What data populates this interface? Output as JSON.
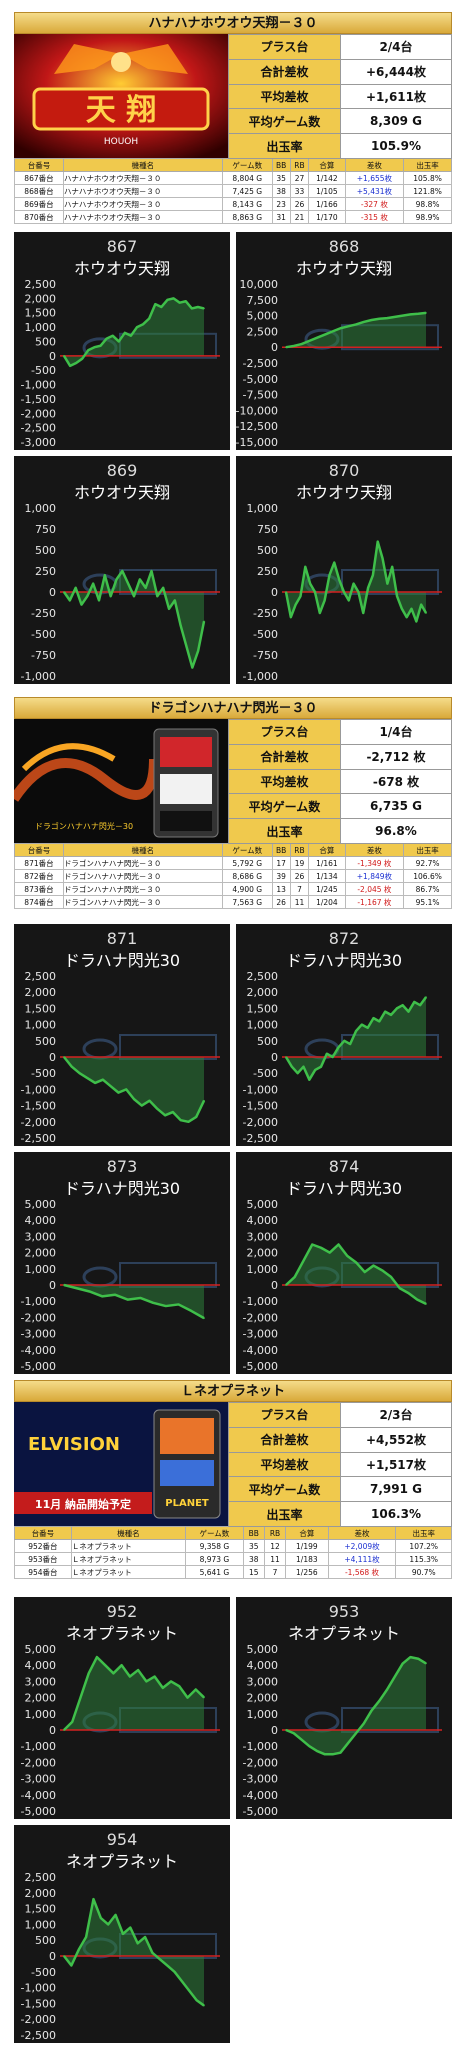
{
  "sections": [
    {
      "id": "s1",
      "title": "ハナハナホウオウ天翔－３０",
      "promo_text": "HOUOH",
      "stats": [
        {
          "k": "プラス台",
          "v": "2/4台"
        },
        {
          "k": "合計差枚",
          "v": "+6,444枚"
        },
        {
          "k": "平均差枚",
          "v": "+1,611枚"
        },
        {
          "k": "平均ゲーム数",
          "v": "8,309 G"
        },
        {
          "k": "出玉率",
          "v": "105.9%"
        }
      ],
      "headers": [
        "台番号",
        "機種名",
        "ゲーム数",
        "BB",
        "RB",
        "合算",
        "差枚",
        "出玉率"
      ],
      "rows": [
        [
          "867番台",
          "ハナハナホウオウ天翔－３０",
          "8,804 G",
          "35",
          "27",
          "1/142",
          "+1,655枚",
          "105.8%"
        ],
        [
          "868番台",
          "ハナハナホウオウ天翔－３０",
          "7,425 G",
          "38",
          "33",
          "1/105",
          "+5,431枚",
          "121.8%"
        ],
        [
          "869番台",
          "ハナハナホウオウ天翔－３０",
          "8,143 G",
          "23",
          "26",
          "1/166",
          "-327 枚",
          "98.8%"
        ],
        [
          "870番台",
          "ハナハナホウオウ天翔－３０",
          "8,863 G",
          "31",
          "21",
          "1/170",
          "-315 枚",
          "98.9%"
        ]
      ]
    },
    {
      "id": "s2",
      "title": "ドラゴンハナハナ閃光－３０",
      "promo_text": "ドラゴンハナハナ閃光－30",
      "stats": [
        {
          "k": "プラス台",
          "v": "1/4台"
        },
        {
          "k": "合計差枚",
          "v": "-2,712 枚"
        },
        {
          "k": "平均差枚",
          "v": "-678 枚"
        },
        {
          "k": "平均ゲーム数",
          "v": "6,735 G"
        },
        {
          "k": "出玉率",
          "v": "96.8%"
        }
      ],
      "headers": [
        "台番号",
        "機種名",
        "ゲーム数",
        "BB",
        "RB",
        "合算",
        "差枚",
        "出玉率"
      ],
      "rows": [
        [
          "871番台",
          "ドラゴンハナハナ閃光－３０",
          "5,792 G",
          "17",
          "19",
          "1/161",
          "-1,349 枚",
          "92.7%"
        ],
        [
          "872番台",
          "ドラゴンハナハナ閃光－３０",
          "8,686 G",
          "39",
          "26",
          "1/134",
          "+1,849枚",
          "106.6%"
        ],
        [
          "873番台",
          "ドラゴンハナハナ閃光－３０",
          "4,900 G",
          "13",
          "7",
          "1/245",
          "-2,045 枚",
          "86.7%"
        ],
        [
          "874番台",
          "ドラゴンハナハナ閃光－３０",
          "7,563 G",
          "26",
          "11",
          "1/204",
          "-1,167 枚",
          "95.1%"
        ]
      ]
    },
    {
      "id": "s3",
      "title": "Ｌネオプラネット",
      "promo_text": "ELVISION",
      "promo_sub": "11月 納品開始予定",
      "promo_brand": "PLANET",
      "stats": [
        {
          "k": "プラス台",
          "v": "2/3台"
        },
        {
          "k": "合計差枚",
          "v": "+4,552枚"
        },
        {
          "k": "平均差枚",
          "v": "+1,517枚"
        },
        {
          "k": "平均ゲーム数",
          "v": "7,991 G"
        },
        {
          "k": "出玉率",
          "v": "106.3%"
        }
      ],
      "headers": [
        "台番号",
        "機種名",
        "ゲーム数",
        "BB",
        "RB",
        "合算",
        "差枚",
        "出玉率"
      ],
      "rows": [
        [
          "952番台",
          "Ｌネオプラネット",
          "9,358 G",
          "35",
          "12",
          "1/199",
          "+2,009枚",
          "107.2%"
        ],
        [
          "953番台",
          "Ｌネオプラネット",
          "8,973 G",
          "38",
          "11",
          "1/183",
          "+4,111枚",
          "115.3%"
        ],
        [
          "954番台",
          "Ｌネオプラネット",
          "5,641 G",
          "15",
          "7",
          "1/256",
          "-1,568 枚",
          "90.7%"
        ]
      ]
    }
  ],
  "chart_data": [
    {
      "type": "line",
      "number": "867",
      "title": "ホウオウ天翔",
      "ylim": [
        -3000,
        2500
      ],
      "ticks": [
        2500,
        2000,
        1500,
        1000,
        500,
        0,
        -500,
        -1000,
        -1500,
        -2000,
        -2500,
        -3000
      ],
      "values": [
        0,
        -350,
        -250,
        -100,
        200,
        300,
        350,
        600,
        700,
        500,
        800,
        700,
        1000,
        1100,
        1300,
        1800,
        1700,
        1950,
        2000,
        1850,
        1900,
        1650,
        1700,
        1650
      ]
    },
    {
      "type": "line",
      "number": "868",
      "title": "ホウオウ天翔",
      "ylim": [
        -15000,
        10000
      ],
      "ticks": [
        10000,
        7500,
        5000,
        2500,
        0,
        -2500,
        -5000,
        -7500,
        -10000,
        -12500,
        -15000
      ],
      "values": [
        0,
        200,
        500,
        1000,
        1500,
        2000,
        2500,
        3000,
        3300,
        3600,
        4000,
        4300,
        4500,
        4600,
        4800,
        5000,
        5200,
        5300,
        5431
      ]
    },
    {
      "type": "line",
      "number": "869",
      "title": "ホウオウ天翔",
      "ylim": [
        -1000,
        1000
      ],
      "ticks": [
        1000,
        750,
        500,
        250,
        0,
        -250,
        -500,
        -750,
        -1000
      ],
      "values": [
        0,
        -100,
        50,
        -150,
        -50,
        100,
        -100,
        200,
        -50,
        150,
        250,
        100,
        -50,
        150,
        50,
        250,
        -50,
        50,
        -200,
        -100,
        -400,
        -650,
        -900,
        -700,
        -350
      ]
    },
    {
      "type": "line",
      "number": "870",
      "title": "ホウオウ天翔",
      "ylim": [
        -1000,
        1000
      ],
      "ticks": [
        1000,
        750,
        500,
        250,
        0,
        -250,
        -500,
        -750,
        -1000
      ],
      "values": [
        0,
        -300,
        -150,
        -50,
        300,
        100,
        0,
        -250,
        -100,
        200,
        350,
        150,
        0,
        -100,
        100,
        0,
        -250,
        50,
        200,
        600,
        400,
        100,
        300,
        -50,
        -200,
        -300,
        -200,
        -350,
        -150,
        -250
      ]
    },
    {
      "type": "line",
      "number": "871",
      "title": "ドラハナ閃光30",
      "ylim": [
        -2500,
        2500
      ],
      "ticks": [
        2500,
        2000,
        1500,
        1000,
        500,
        0,
        -500,
        -1000,
        -1500,
        -2000,
        -2500
      ],
      "values": [
        0,
        -300,
        -500,
        -650,
        -800,
        -700,
        -900,
        -1100,
        -1000,
        -1300,
        -1500,
        -1350,
        -1600,
        -1800,
        -1700,
        -1950,
        -2000,
        -1850,
        -1349
      ]
    },
    {
      "type": "line",
      "number": "872",
      "title": "ドラハナ閃光30",
      "ylim": [
        -2500,
        2500
      ],
      "ticks": [
        2500,
        2000,
        1500,
        1000,
        500,
        0,
        -500,
        -1000,
        -1500,
        -2000,
        -2500
      ],
      "values": [
        0,
        -300,
        -500,
        -300,
        -700,
        -400,
        -300,
        100,
        0,
        300,
        500,
        400,
        800,
        1000,
        900,
        1200,
        1100,
        1400,
        1300,
        1500,
        1600,
        1400,
        1700,
        1600,
        1849
      ]
    },
    {
      "type": "line",
      "number": "873",
      "title": "ドラハナ閃光30",
      "ylim": [
        -5000,
        5000
      ],
      "ticks": [
        5000,
        4000,
        3000,
        2000,
        1000,
        0,
        -1000,
        -2000,
        -3000,
        -4000,
        -5000
      ],
      "values": [
        0,
        -200,
        -400,
        -700,
        -600,
        -900,
        -800,
        -1100,
        -1300,
        -1200,
        -1600,
        -2045
      ]
    },
    {
      "type": "line",
      "number": "874",
      "title": "ドラハナ閃光30",
      "ylim": [
        -5000,
        5000
      ],
      "ticks": [
        5000,
        4000,
        3000,
        2000,
        1000,
        0,
        -1000,
        -2000,
        -3000,
        -4000,
        -5000
      ],
      "values": [
        0,
        500,
        1500,
        2500,
        2300,
        2000,
        2500,
        1800,
        1400,
        800,
        1200,
        900,
        500,
        -200,
        -500,
        -900,
        -1167
      ]
    },
    {
      "type": "line",
      "number": "952",
      "title": "ネオプラネット",
      "ylim": [
        -5000,
        5000
      ],
      "ticks": [
        5000,
        4000,
        3000,
        2000,
        1000,
        0,
        -1000,
        -2000,
        -3000,
        -4000,
        -5000
      ],
      "values": [
        0,
        500,
        2000,
        3500,
        4500,
        4000,
        3500,
        4000,
        3300,
        3700,
        3000,
        3300,
        2600,
        3000,
        2700,
        2000,
        2500,
        2009
      ]
    },
    {
      "type": "line",
      "number": "953",
      "title": "ネオプラネット",
      "ylim": [
        -5000,
        5000
      ],
      "ticks": [
        5000,
        4000,
        3000,
        2000,
        1000,
        0,
        -1000,
        -2000,
        -3000,
        -4000,
        -5000
      ],
      "values": [
        0,
        -200,
        -600,
        -1000,
        -1300,
        -1500,
        -1500,
        -1400,
        -800,
        -200,
        400,
        1200,
        1800,
        2500,
        3300,
        4100,
        4500,
        4400,
        4111
      ]
    },
    {
      "type": "line",
      "number": "954",
      "title": "ネオプラネット",
      "ylim": [
        -2500,
        2500
      ],
      "ticks": [
        2500,
        2000,
        1500,
        1000,
        500,
        0,
        -500,
        -1000,
        -1500,
        -2000,
        -2500
      ],
      "values": [
        0,
        -300,
        200,
        600,
        1800,
        1200,
        1000,
        1300,
        700,
        900,
        400,
        600,
        100,
        -100,
        -300,
        -500,
        -800,
        -1100,
        -1400,
        -1568
      ]
    }
  ]
}
